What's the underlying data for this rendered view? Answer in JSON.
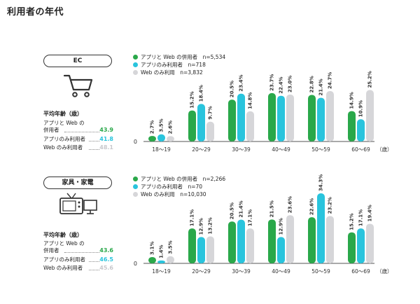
{
  "page_title": "利用者の年代",
  "colors": {
    "app_and_web": "#2aa84a",
    "app_only": "#29c4dd",
    "web_only": "#d6d6d9"
  },
  "panels": [
    {
      "category": "EC",
      "icon": "shopping-cart-icon",
      "avg_age_title": "平均年齢（歳）",
      "avg_ages": [
        {
          "label_line1": "アプリと Web の",
          "label_line2": "併用者",
          "value": "43.9",
          "color": "#2aa84a"
        },
        {
          "label_line1": "アプリのみ利用者",
          "label_line2": "",
          "value": "41.8",
          "color": "#29c4dd"
        },
        {
          "label_line1": "Web のみ利用者",
          "label_line2": "",
          "value": "48.1",
          "color": "#c8c8cc"
        }
      ],
      "legend": [
        {
          "label": "アプリと Web の併用者　n=5,534",
          "color": "#2aa84a"
        },
        {
          "label": "アプリのみ利用者　n=718",
          "color": "#29c4dd"
        },
        {
          "label": "Web のみ利用　n=3,832",
          "color": "#d6d6d9"
        }
      ]
    },
    {
      "category": "家具・家電",
      "icon": "television-icon",
      "avg_age_title": "平均年齢（歳）",
      "avg_ages": [
        {
          "label_line1": "アプリと Web の",
          "label_line2": "併用者",
          "value": "43.6",
          "color": "#2aa84a"
        },
        {
          "label_line1": "アプリのみ利用者",
          "label_line2": "",
          "value": "46.5",
          "color": "#29c4dd"
        },
        {
          "label_line1": "Web のみ利用者",
          "label_line2": "",
          "value": "45.6",
          "color": "#c8c8cc"
        }
      ],
      "legend": [
        {
          "label": "アプリと Web の併用者　n=2,266",
          "color": "#2aa84a"
        },
        {
          "label": "アプリのみ利用者　n=70",
          "color": "#29c4dd"
        },
        {
          "label": "Web のみ利用　n=10,030",
          "color": "#d6d6d9"
        }
      ]
    }
  ],
  "chart_data": [
    {
      "type": "bar",
      "categories": [
        "18〜19",
        "20〜29",
        "30〜39",
        "40〜49",
        "50〜59",
        "60〜69"
      ],
      "x_unit": "（歳）",
      "value_unit": "%",
      "zero_label": "0",
      "ylim": [
        0,
        35
      ],
      "series": [
        {
          "name": "アプリと Web の併用者",
          "values": [
            2.7,
            15.2,
            20.5,
            23.7,
            22.8,
            14.9
          ]
        },
        {
          "name": "アプリのみ利用者",
          "values": [
            3.5,
            18.4,
            23.4,
            22.4,
            21.4,
            10.9
          ]
        },
        {
          "name": "Web のみ利用",
          "values": [
            2.6,
            9.7,
            14.8,
            23.0,
            24.7,
            25.2
          ]
        }
      ]
    },
    {
      "type": "bar",
      "categories": [
        "18〜19",
        "20〜29",
        "30〜39",
        "40〜49",
        "50〜59",
        "60〜69"
      ],
      "x_unit": "（歳）",
      "value_unit": "%",
      "zero_label": "0",
      "ylim": [
        0,
        35
      ],
      "series": [
        {
          "name": "アプリと Web の併用者",
          "values": [
            3.1,
            17.1,
            20.5,
            21.5,
            22.6,
            15.2
          ]
        },
        {
          "name": "アプリのみ利用者",
          "values": [
            1.4,
            12.9,
            21.4,
            12.9,
            34.3,
            17.1
          ]
        },
        {
          "name": "Web のみ利用",
          "values": [
            3.5,
            13.2,
            17.1,
            23.6,
            23.2,
            19.4
          ]
        }
      ]
    }
  ]
}
